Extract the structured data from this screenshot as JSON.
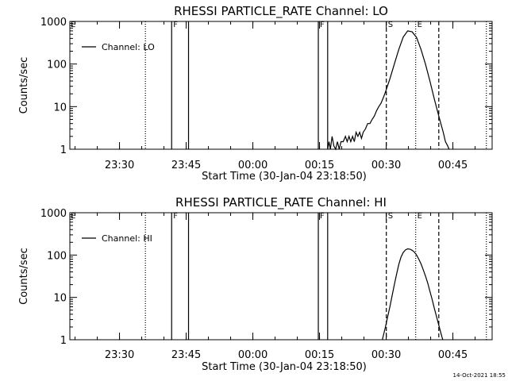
{
  "footer": {
    "timestamp": "14-Oct-2021 18:55"
  },
  "chart_data": [
    {
      "type": "line",
      "title": "RHESSI PARTICLE_RATE Channel: LO",
      "xlabel": "Start Time (30-Jan-04 23:18:50)",
      "ylabel": "Counts/sec",
      "x_unit": "minutes since 23:18:50",
      "xlim": [
        0,
        95
      ],
      "ylim": [
        1,
        1000
      ],
      "yscale": "log",
      "grid": false,
      "legend": {
        "position": "top-left",
        "entries": [
          "Channel: LO"
        ]
      },
      "xticks": [
        {
          "x": 11.17,
          "label": "23:30"
        },
        {
          "x": 26.17,
          "label": "23:45"
        },
        {
          "x": 41.17,
          "label": "00:00"
        },
        {
          "x": 56.17,
          "label": "00:15"
        },
        {
          "x": 71.17,
          "label": "00:30"
        },
        {
          "x": 86.17,
          "label": "00:45"
        }
      ],
      "yticks": [
        {
          "y": 1,
          "label": "1"
        },
        {
          "y": 10,
          "label": "10"
        },
        {
          "y": 100,
          "label": "100"
        },
        {
          "y": 1000,
          "label": "1000"
        }
      ],
      "markers": [
        {
          "x": 0,
          "label": "E",
          "style": "solid"
        },
        {
          "x": 17.0,
          "label": "",
          "style": "dotted"
        },
        {
          "x": 22.9,
          "label": "F",
          "style": "solid"
        },
        {
          "x": 26.7,
          "label": "",
          "style": "solid"
        },
        {
          "x": 55.9,
          "label": "F",
          "style": "solid"
        },
        {
          "x": 58.0,
          "label": "",
          "style": "solid"
        },
        {
          "x": 71.2,
          "label": "S",
          "style": "dashed"
        },
        {
          "x": 77.8,
          "label": "E",
          "style": "dotted"
        },
        {
          "x": 83.0,
          "label": "",
          "style": "dashed"
        },
        {
          "x": 93.7,
          "label": "",
          "style": "dotted"
        }
      ],
      "series": [
        {
          "name": "Channel: LO",
          "x": [
            58.0,
            58.3,
            58.6,
            59.0,
            59.4,
            59.8,
            60.2,
            60.6,
            61.0,
            61.5,
            62.0,
            62.4,
            62.8,
            63.2,
            63.6,
            64.0,
            64.4,
            64.8,
            65.2,
            65.6,
            66.0,
            66.5,
            67.0,
            67.5,
            68.0,
            68.5,
            69.0,
            69.5,
            70.0,
            70.5,
            71.0,
            72.0,
            73.0,
            74.0,
            75.0,
            76.0,
            77.0,
            78.0,
            79.0,
            80.0,
            81.0,
            82.0,
            83.0,
            84.0,
            84.5,
            85.0,
            85.3
          ],
          "y": [
            1.0,
            1.5,
            1.0,
            2.0,
            1.2,
            1.0,
            1.5,
            1.0,
            1.5,
            1.5,
            2.0,
            1.5,
            2.0,
            1.5,
            2.0,
            1.5,
            2.5,
            2.0,
            2.5,
            1.8,
            2.5,
            3.0,
            4.0,
            4.0,
            5.0,
            6.0,
            8.0,
            10.0,
            12.0,
            16.0,
            22.0,
            45.0,
            100.0,
            220.0,
            430.0,
            600.0,
            570.0,
            420.0,
            220.0,
            100.0,
            40.0,
            15.0,
            6.0,
            2.5,
            1.5,
            1.2,
            1.0
          ]
        }
      ]
    },
    {
      "type": "line",
      "title": "RHESSI PARTICLE_RATE Channel: HI",
      "xlabel": "Start Time (30-Jan-04 23:18:50)",
      "ylabel": "Counts/sec",
      "x_unit": "minutes since 23:18:50",
      "xlim": [
        0,
        95
      ],
      "ylim": [
        1,
        1000
      ],
      "yscale": "log",
      "grid": false,
      "legend": {
        "position": "top-left",
        "entries": [
          "Channel: HI"
        ]
      },
      "xticks": [
        {
          "x": 11.17,
          "label": "23:30"
        },
        {
          "x": 26.17,
          "label": "23:45"
        },
        {
          "x": 41.17,
          "label": "00:00"
        },
        {
          "x": 56.17,
          "label": "00:15"
        },
        {
          "x": 71.17,
          "label": "00:30"
        },
        {
          "x": 86.17,
          "label": "00:45"
        }
      ],
      "yticks": [
        {
          "y": 1,
          "label": "1"
        },
        {
          "y": 10,
          "label": "10"
        },
        {
          "y": 100,
          "label": "100"
        },
        {
          "y": 1000,
          "label": "1000"
        }
      ],
      "markers": [
        {
          "x": 0,
          "label": "E",
          "style": "solid"
        },
        {
          "x": 17.0,
          "label": "",
          "style": "dotted"
        },
        {
          "x": 22.9,
          "label": "F",
          "style": "solid"
        },
        {
          "x": 26.7,
          "label": "",
          "style": "solid"
        },
        {
          "x": 55.9,
          "label": "F",
          "style": "solid"
        },
        {
          "x": 58.0,
          "label": "",
          "style": "solid"
        },
        {
          "x": 71.2,
          "label": "S",
          "style": "dashed"
        },
        {
          "x": 77.8,
          "label": "E",
          "style": "dotted"
        },
        {
          "x": 83.0,
          "label": "",
          "style": "dashed"
        },
        {
          "x": 93.7,
          "label": "",
          "style": "dotted"
        }
      ],
      "series": [
        {
          "name": "Channel: HI",
          "x": [
            70.3,
            71.0,
            71.5,
            72.0,
            72.5,
            73.0,
            73.5,
            74.0,
            74.5,
            75.0,
            75.5,
            76.0,
            76.5,
            77.0,
            77.5,
            78.0,
            78.5,
            79.0,
            79.5,
            80.0,
            80.5,
            81.0,
            81.5,
            82.0,
            82.5,
            83.0,
            83.5,
            83.9
          ],
          "y": [
            1.0,
            2.0,
            3.5,
            6.0,
            11.0,
            20.0,
            35.0,
            60.0,
            90.0,
            115.0,
            132.0,
            140.0,
            138.0,
            130.0,
            118.0,
            100.0,
            80.0,
            62.0,
            45.0,
            32.0,
            22.0,
            14.0,
            9.0,
            5.5,
            3.5,
            2.2,
            1.4,
            1.0
          ]
        }
      ]
    }
  ]
}
